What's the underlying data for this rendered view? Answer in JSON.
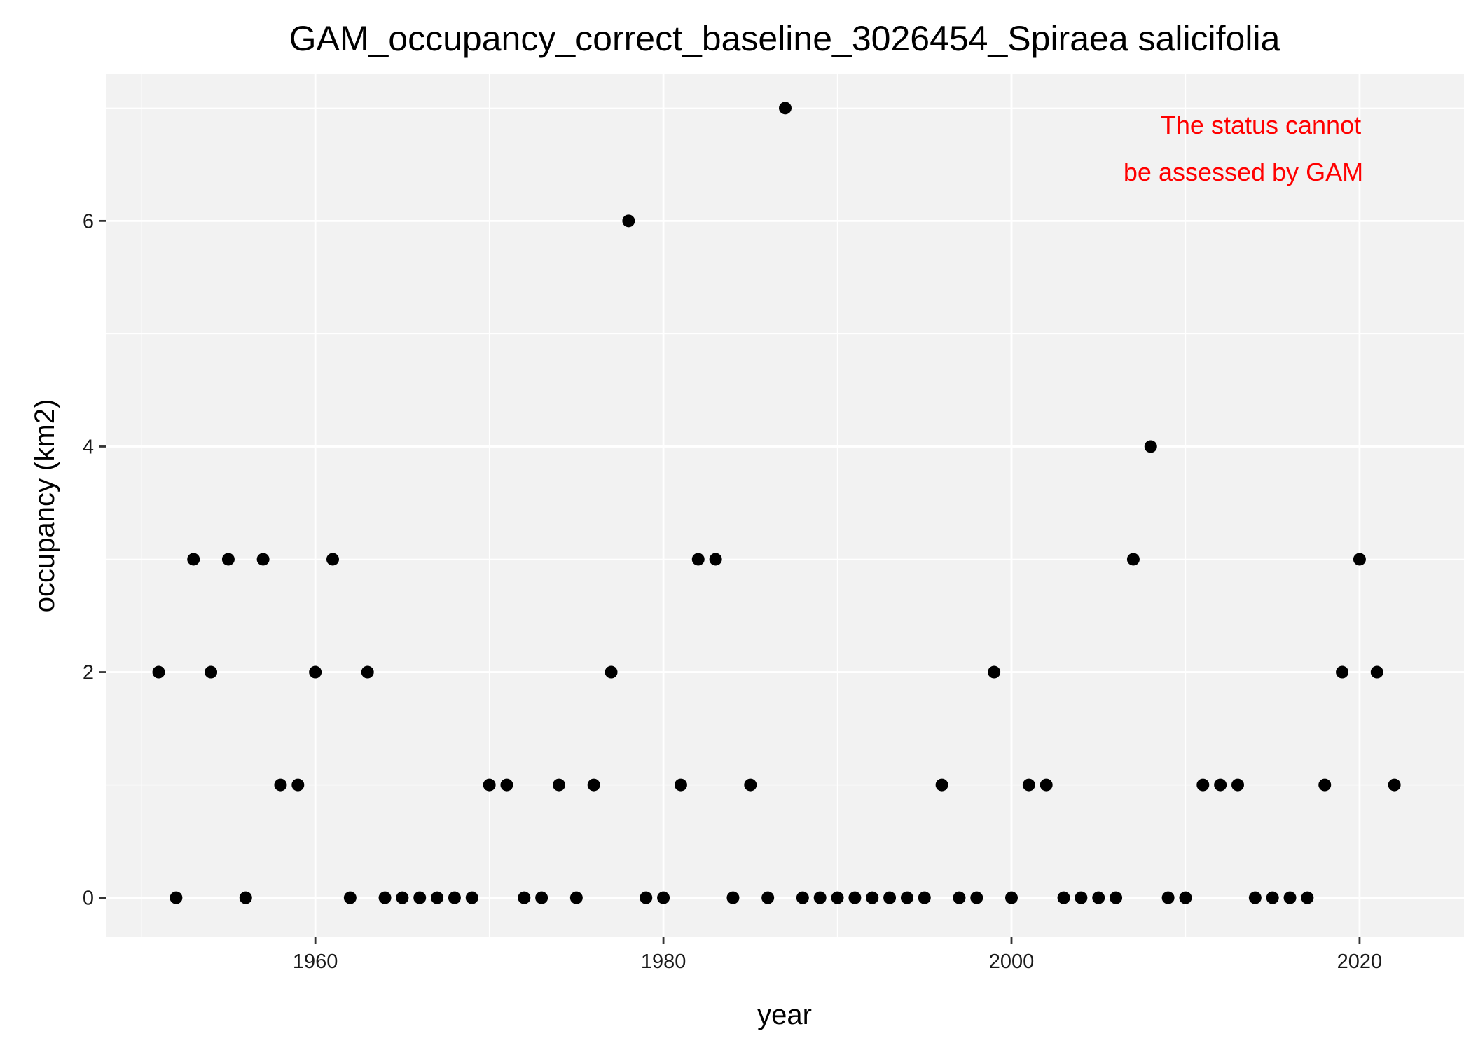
{
  "chart_data": {
    "type": "scatter",
    "title": "GAM_occupancy_correct_baseline_3026454_Spiraea salicifolia",
    "xlabel": "year",
    "ylabel": "occupancy (km2)",
    "xlim": [
      1948,
      2026
    ],
    "ylim": [
      -0.35,
      7.3
    ],
    "x_ticks": [
      1960,
      1980,
      2000,
      2020
    ],
    "y_ticks": [
      0,
      2,
      4,
      6
    ],
    "grid": true,
    "legend": "none",
    "annotation": {
      "lines": [
        "The status cannot",
        "be assessed by GAM"
      ],
      "color": "#ff0000"
    },
    "colors": {
      "panel": "#f2f2f2",
      "grid": "#ffffff",
      "point": "#000000"
    },
    "points": [
      [
        1951,
        2
      ],
      [
        1952,
        0
      ],
      [
        1953,
        3
      ],
      [
        1954,
        2
      ],
      [
        1955,
        3
      ],
      [
        1956,
        0
      ],
      [
        1957,
        3
      ],
      [
        1958,
        1
      ],
      [
        1959,
        1
      ],
      [
        1960,
        2
      ],
      [
        1961,
        3
      ],
      [
        1962,
        0
      ],
      [
        1963,
        2
      ],
      [
        1964,
        0
      ],
      [
        1965,
        0
      ],
      [
        1966,
        0
      ],
      [
        1967,
        0
      ],
      [
        1968,
        0
      ],
      [
        1969,
        0
      ],
      [
        1970,
        1
      ],
      [
        1971,
        1
      ],
      [
        1972,
        0
      ],
      [
        1973,
        0
      ],
      [
        1974,
        1
      ],
      [
        1975,
        0
      ],
      [
        1976,
        1
      ],
      [
        1977,
        2
      ],
      [
        1978,
        6
      ],
      [
        1979,
        0
      ],
      [
        1980,
        0
      ],
      [
        1981,
        1
      ],
      [
        1982,
        3
      ],
      [
        1983,
        3
      ],
      [
        1984,
        0
      ],
      [
        1985,
        1
      ],
      [
        1986,
        0
      ],
      [
        1987,
        7
      ],
      [
        1988,
        0
      ],
      [
        1989,
        0
      ],
      [
        1990,
        0
      ],
      [
        1991,
        0
      ],
      [
        1992,
        0
      ],
      [
        1993,
        0
      ],
      [
        1994,
        0
      ],
      [
        1995,
        0
      ],
      [
        1996,
        1
      ],
      [
        1997,
        0
      ],
      [
        1998,
        0
      ],
      [
        1999,
        2
      ],
      [
        2000,
        0
      ],
      [
        2001,
        1
      ],
      [
        2002,
        1
      ],
      [
        2003,
        0
      ],
      [
        2004,
        0
      ],
      [
        2005,
        0
      ],
      [
        2006,
        0
      ],
      [
        2007,
        3
      ],
      [
        2008,
        4
      ],
      [
        2009,
        0
      ],
      [
        2010,
        0
      ],
      [
        2011,
        1
      ],
      [
        2012,
        1
      ],
      [
        2013,
        1
      ],
      [
        2014,
        0
      ],
      [
        2015,
        0
      ],
      [
        2016,
        0
      ],
      [
        2017,
        0
      ],
      [
        2018,
        1
      ],
      [
        2019,
        2
      ],
      [
        2020,
        3
      ],
      [
        2021,
        2
      ],
      [
        2022,
        1
      ]
    ]
  }
}
